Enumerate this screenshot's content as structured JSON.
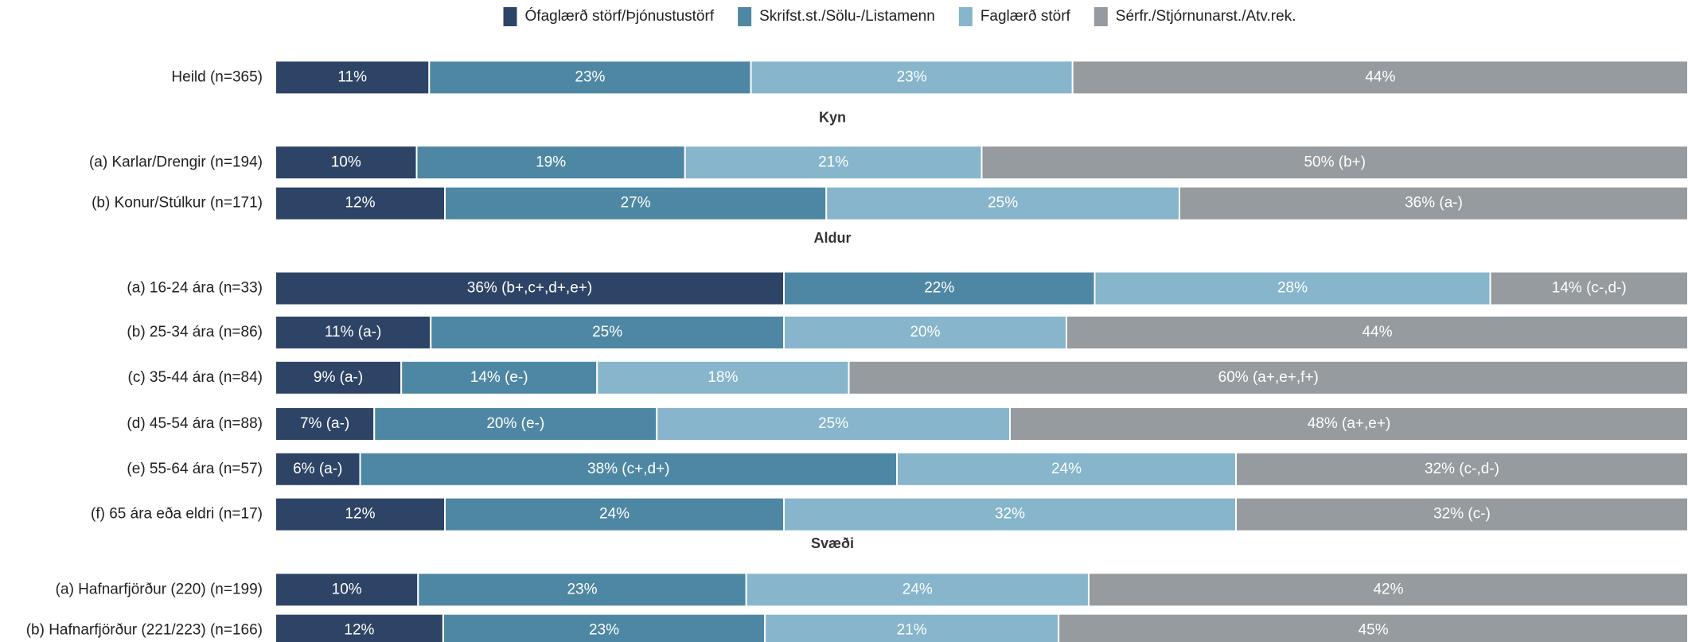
{
  "chart_data": {
    "type": "stacked_bar_horizontal",
    "categories": [
      "Heild (n=365)",
      "Kyn",
      "(a) Karlar/Drengir (n=194)",
      "(b) Konur/Stúlkur (n=171)",
      "Aldur",
      "(a) 16-24 ára (n=33)",
      "(b) 25-34 ára (n=86)",
      "(c) 35-44 ára (n=84)",
      "(d) 45-54 ára (n=88)",
      "(e) 55-64 ára (n=57)",
      "(f) 65 ára eða eldri (n=17)",
      "Svæði",
      "(a) Hafnarfjörður (220) (n=199)",
      "(b) Hafnarfjörður (221/223) (n=166)"
    ],
    "series": [
      {
        "name": "Ófaglærð störf/Þjónustustörf",
        "color": "#2e4466",
        "values": [
          11,
          null,
          10,
          12,
          null,
          36,
          11,
          9,
          7,
          6,
          12,
          null,
          10,
          12
        ],
        "value_labels": [
          "11%",
          null,
          "10%",
          "12%",
          null,
          "36% (b+,c+,d+,e+)",
          "11% (a-)",
          "9% (a-)",
          "7% (a-)",
          "6% (a-)",
          "12%",
          null,
          "10%",
          "12%"
        ]
      },
      {
        "name": "Skrifst.st./Sölu-/Listamenn",
        "color": "#4e87a3",
        "values": [
          23,
          null,
          19,
          27,
          null,
          22,
          25,
          14,
          20,
          38,
          24,
          null,
          23,
          23
        ],
        "value_labels": [
          "23%",
          null,
          "19%",
          "27%",
          null,
          "22%",
          "25%",
          "14% (e-)",
          "20% (e-)",
          "38% (c+,d+)",
          "24%",
          null,
          "23%",
          "23%"
        ]
      },
      {
        "name": "Faglærð störf",
        "color": "#86b5cc",
        "values": [
          23,
          null,
          21,
          25,
          null,
          28,
          20,
          18,
          25,
          24,
          32,
          null,
          24,
          21
        ],
        "value_labels": [
          "23%",
          null,
          "21%",
          "25%",
          null,
          "28%",
          "20%",
          "18%",
          "25%",
          "24%",
          "32%",
          null,
          "24%",
          "21%"
        ]
      },
      {
        "name": "Sérfr./Stjórnunarst./Atv.rek.",
        "color": "#959b9e",
        "values": [
          44,
          null,
          50,
          36,
          null,
          14,
          44,
          60,
          48,
          32,
          32,
          null,
          42,
          45
        ],
        "value_labels": [
          "44%",
          null,
          "50% (b+)",
          "36% (a-)",
          null,
          "14% (c-,d-)",
          "44%",
          "60% (a+,e+,f+)",
          "48% (a+,e+)",
          "32% (c-,d-)",
          "32% (c-)",
          null,
          "42%",
          "45%"
        ]
      }
    ]
  }
}
